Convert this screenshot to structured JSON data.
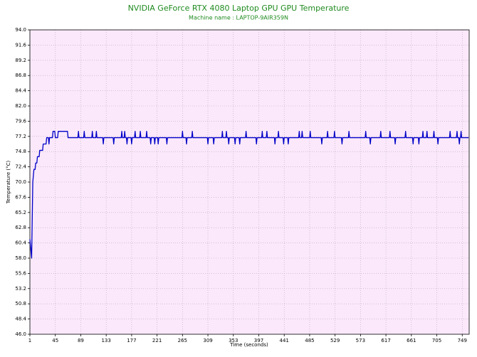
{
  "chart_data": {
    "type": "line",
    "title": "NVIDIA GeForce RTX 4080 Laptop GPU GPU Temperature",
    "subtitle": "Machine name : LAPTOP-9AIR359N",
    "xlabel": "Time (seconds)",
    "ylabel": "Temperature (°C)",
    "color": "#0000c8",
    "background": "#fbe9fb",
    "grid": true,
    "xlim": [
      1,
      761
    ],
    "ylim": [
      46,
      94
    ],
    "xticks": [
      1,
      45,
      89,
      133,
      177,
      221,
      265,
      309,
      353,
      397,
      441,
      485,
      529,
      573,
      617,
      661,
      705,
      749
    ],
    "yticks": [
      {
        "value": 46,
        "label": "46.0"
      },
      48.4,
      50.8,
      53.2,
      55.6,
      {
        "value": 58,
        "label": "58.0"
      },
      60.4,
      62.8,
      65.2,
      67.6,
      {
        "value": 70,
        "label": "70.0"
      },
      72.4,
      74.8,
      77.2,
      79.6,
      {
        "value": 82,
        "label": "82.0"
      },
      84.4,
      86.8,
      89.2,
      91.6,
      {
        "value": 94,
        "label": "94.0"
      }
    ],
    "x": [
      1,
      2,
      3,
      4,
      5,
      6,
      7,
      8,
      10,
      11,
      13,
      14,
      17,
      18,
      23,
      24,
      29,
      30,
      33,
      34,
      35,
      40,
      41,
      44,
      45,
      49,
      50,
      66,
      67,
      84,
      85,
      86,
      94,
      95,
      96,
      108,
      109,
      110,
      115,
      116,
      117,
      127,
      128,
      129,
      145,
      146,
      147,
      159,
      160,
      161,
      164,
      165,
      166,
      168,
      169,
      170,
      176,
      177,
      178,
      182,
      183,
      184,
      191,
      192,
      193,
      202,
      203,
      204,
      209,
      210,
      211,
      216,
      217,
      218,
      222,
      223,
      224,
      237,
      238,
      239,
      264,
      265,
      266,
      271,
      272,
      273,
      281,
      282,
      283,
      308,
      309,
      310,
      318,
      319,
      320,
      333,
      334,
      335,
      340,
      341,
      342,
      344,
      345,
      346,
      355,
      356,
      357,
      363,
      364,
      365,
      374,
      375,
      376,
      392,
      393,
      394,
      402,
      403,
      404,
      410,
      411,
      412,
      424,
      425,
      426,
      430,
      431,
      432,
      439,
      440,
      441,
      447,
      448,
      449,
      466,
      467,
      468,
      471,
      472,
      473,
      485,
      486,
      487,
      505,
      506,
      507,
      515,
      516,
      517,
      527,
      528,
      529,
      540,
      541,
      542,
      552,
      553,
      554,
      581,
      582,
      583,
      589,
      590,
      591,
      607,
      608,
      609,
      623,
      624,
      625,
      632,
      633,
      634,
      650,
      651,
      652,
      663,
      664,
      665,
      673,
      674,
      675,
      680,
      681,
      682,
      687,
      688,
      689,
      699,
      700,
      701,
      706,
      707,
      708,
      727,
      728,
      729,
      739,
      740,
      741,
      743,
      744,
      745,
      746,
      747,
      748,
      760
    ],
    "values": [
      61,
      60,
      59,
      58,
      64,
      70,
      71,
      72,
      72,
      73,
      73,
      74,
      74,
      75,
      75,
      76,
      76,
      77,
      77,
      76,
      77,
      77,
      78,
      78,
      77,
      77,
      78,
      78,
      77,
      77,
      78,
      77,
      77,
      78,
      77,
      77,
      78,
      77,
      77,
      78,
      77,
      77,
      76,
      77,
      77,
      76,
      77,
      77,
      78,
      77,
      77,
      78,
      77,
      77,
      76,
      77,
      77,
      76,
      77,
      77,
      78,
      77,
      77,
      78,
      77,
      77,
      78,
      77,
      77,
      76,
      77,
      77,
      76,
      77,
      77,
      76,
      77,
      77,
      76,
      77,
      77,
      78,
      77,
      77,
      76,
      77,
      77,
      78,
      77,
      77,
      76,
      77,
      77,
      76,
      77,
      77,
      78,
      77,
      77,
      78,
      77,
      77,
      76,
      77,
      77,
      76,
      77,
      77,
      76,
      77,
      77,
      78,
      77,
      77,
      76,
      77,
      77,
      78,
      77,
      77,
      78,
      77,
      77,
      76,
      77,
      77,
      78,
      77,
      77,
      76,
      77,
      77,
      76,
      77,
      77,
      78,
      77,
      77,
      78,
      77,
      77,
      78,
      77,
      77,
      76,
      77,
      77,
      78,
      77,
      77,
      78,
      77,
      77,
      76,
      77,
      77,
      78,
      77,
      77,
      78,
      77,
      77,
      76,
      77,
      77,
      78,
      77,
      77,
      78,
      77,
      77,
      76,
      77,
      77,
      78,
      77,
      77,
      76,
      77,
      77,
      76,
      77,
      77,
      78,
      77,
      77,
      78,
      77,
      77,
      78,
      77,
      77,
      76,
      77,
      77,
      78,
      77,
      77,
      78,
      77,
      77,
      76,
      77,
      77,
      78,
      77,
      77
    ]
  }
}
